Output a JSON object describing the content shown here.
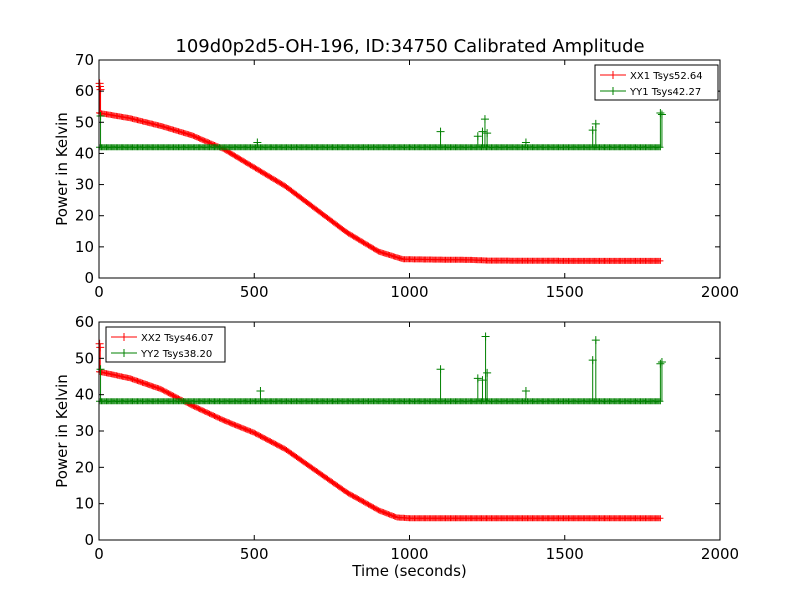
{
  "figure": {
    "title": "109d0p2d5-OH-196, ID:34750 Calibrated Amplitude"
  },
  "chart_data": [
    {
      "type": "line",
      "title": "109d0p2d5-OH-196, ID:34750 Calibrated Amplitude",
      "xlabel": "",
      "ylabel": "Power in Kelvin",
      "xlim": [
        0,
        2000
      ],
      "ylim": [
        0,
        70
      ],
      "xticks": [
        "0",
        "500",
        "1000",
        "1500",
        "2000"
      ],
      "yticks": [
        "0",
        "10",
        "20",
        "30",
        "40",
        "50",
        "60",
        "70"
      ],
      "grid": false,
      "legend_position": "top-right",
      "series": [
        {
          "name": "XX1 Tsys52.64",
          "color": "#ff0000",
          "marker": "+",
          "baseline": [
            [
              0,
              53
            ],
            [
              30,
              52.5
            ],
            [
              100,
              51.3
            ],
            [
              200,
              48.8
            ],
            [
              300,
              45.8
            ],
            [
              400,
              41.5
            ],
            [
              500,
              35.5
            ],
            [
              600,
              29.5
            ],
            [
              700,
              22
            ],
            [
              800,
              14.5
            ],
            [
              900,
              8.5
            ],
            [
              980,
              6
            ],
            [
              1000,
              6
            ],
            [
              1200,
              5.8
            ],
            [
              1250,
              5.6
            ],
            [
              1500,
              5.5
            ],
            [
              1810,
              5.5
            ]
          ],
          "spikes": [
            [
              2,
              62.5
            ],
            [
              3,
              61.5
            ],
            [
              5,
              60.5
            ]
          ]
        },
        {
          "name": "YY1 Tsys42.27",
          "color": "#008000",
          "marker": "+",
          "baseline": [
            [
              0,
              42
            ],
            [
              1810,
              42
            ]
          ],
          "spikes": [
            [
              5,
              52
            ],
            [
              510,
              43.5
            ],
            [
              1100,
              47
            ],
            [
              1220,
              45.5
            ],
            [
              1235,
              47
            ],
            [
              1243,
              51
            ],
            [
              1250,
              46.5
            ],
            [
              1375,
              43.5
            ],
            [
              1590,
              47.5
            ],
            [
              1600,
              49.5
            ],
            [
              1808,
              53
            ],
            [
              1813,
              52.5
            ]
          ]
        }
      ]
    },
    {
      "type": "line",
      "title": "",
      "xlabel": "Time (seconds)",
      "ylabel": "Power in Kelvin",
      "xlim": [
        0,
        2000
      ],
      "ylim": [
        0,
        60
      ],
      "xticks": [
        "0",
        "500",
        "1000",
        "1500",
        "2000"
      ],
      "yticks": [
        "0",
        "10",
        "20",
        "30",
        "40",
        "50",
        "60"
      ],
      "grid": false,
      "legend_position": "top-left",
      "series": [
        {
          "name": "XX2 Tsys46.07",
          "color": "#ff0000",
          "marker": "+",
          "baseline": [
            [
              0,
              46.3
            ],
            [
              30,
              45.8
            ],
            [
              100,
              44.5
            ],
            [
              200,
              41.5
            ],
            [
              300,
              37
            ],
            [
              400,
              33
            ],
            [
              500,
              29.5
            ],
            [
              600,
              25
            ],
            [
              700,
              19
            ],
            [
              800,
              13
            ],
            [
              900,
              8.2
            ],
            [
              960,
              6.2
            ],
            [
              1000,
              6
            ],
            [
              1500,
              6
            ],
            [
              1810,
              6
            ]
          ],
          "spikes": [
            [
              2,
              54
            ],
            [
              4,
              53
            ]
          ]
        },
        {
          "name": "YY2 Tsys38.20",
          "color": "#008000",
          "marker": "+",
          "baseline": [
            [
              0,
              38.2
            ],
            [
              1810,
              38.2
            ]
          ],
          "spikes": [
            [
              5,
              47
            ],
            [
              520,
              41
            ],
            [
              1100,
              47
            ],
            [
              1220,
              44.5
            ],
            [
              1235,
              44
            ],
            [
              1245,
              56
            ],
            [
              1250,
              46
            ],
            [
              1375,
              41
            ],
            [
              1590,
              49.5
            ],
            [
              1600,
              55
            ],
            [
              1808,
              48.5
            ],
            [
              1813,
              49
            ]
          ]
        }
      ]
    }
  ]
}
